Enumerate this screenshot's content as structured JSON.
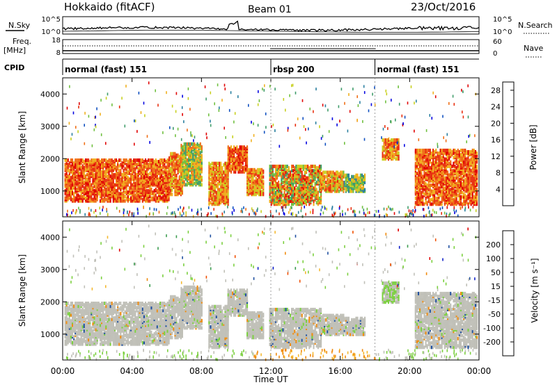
{
  "header": {
    "station": "Hokkaido (fitACF)",
    "beam": "Beam 01",
    "date": "23/Oct/2016"
  },
  "colors": {
    "power_scale": [
      "#0000e0",
      "#1050c0",
      "#2a7fa0",
      "#3f9c6a",
      "#70c040",
      "#c8d020",
      "#f0b020",
      "#f07018",
      "#e83010",
      "#e00000"
    ],
    "velocity_scale": [
      "#e00000",
      "#f05000",
      "#f08c10",
      "#f4b830",
      "#c0c0b8",
      "#c0c0b8",
      "#7cd040",
      "#3c9c50",
      "#2050a0",
      "#1020c8"
    ]
  },
  "chart_data": [
    {
      "type": "line",
      "name": "noise",
      "left_label": "N.Sky",
      "right_label": "N.Search",
      "ytick_left": [
        "10^5",
        "10^0"
      ],
      "ytick_right": [
        "10^5",
        "10^0"
      ]
    },
    {
      "type": "line",
      "name": "frequency",
      "left_label_1": "Freq.",
      "left_label_2": "[MHz]",
      "right_label": "Nave",
      "ytick_left": [
        "18",
        "8"
      ],
      "ytick_right": [
        "60",
        "0"
      ]
    },
    {
      "type": "table",
      "name": "cpid",
      "left_label": "CPID",
      "segments": [
        {
          "label": "normal (fast) 151",
          "start_hour": 0,
          "end_hour": 12
        },
        {
          "label": "rbsp 200",
          "start_hour": 12,
          "end_hour": 18
        },
        {
          "label": "normal (fast) 151",
          "start_hour": 18,
          "end_hour": 24
        }
      ]
    },
    {
      "type": "heatmap",
      "name": "power",
      "ylabel": "Slant Range [km]",
      "ytick_labels": [
        "1000",
        "2000",
        "3000",
        "4000"
      ],
      "ylim": [
        200,
        4500
      ],
      "colorbar_label": "Power [dB]",
      "colorbar_ticks": [
        "4",
        "8",
        "12",
        "16",
        "20",
        "24",
        "28"
      ],
      "colorbar_range": [
        0,
        30
      ]
    },
    {
      "type": "heatmap",
      "name": "velocity",
      "ylabel": "Slant Range [km]",
      "ytick_labels": [
        "1000",
        "2000",
        "3000",
        "4000"
      ],
      "ylim": [
        200,
        4500
      ],
      "colorbar_label": "Velocity [m s⁻¹]",
      "colorbar_ticks": [
        "200",
        "100",
        "50",
        "15",
        "-15",
        "-50",
        "-100",
        "-200"
      ],
      "colorbar_range": [
        -250,
        250
      ]
    }
  ],
  "x_axis": {
    "label": "Time UT",
    "ticks": [
      "00:00",
      "04:00",
      "08:00",
      "12:00",
      "16:00",
      "20:00",
      "00:00"
    ],
    "range_hours": [
      0,
      24
    ]
  }
}
